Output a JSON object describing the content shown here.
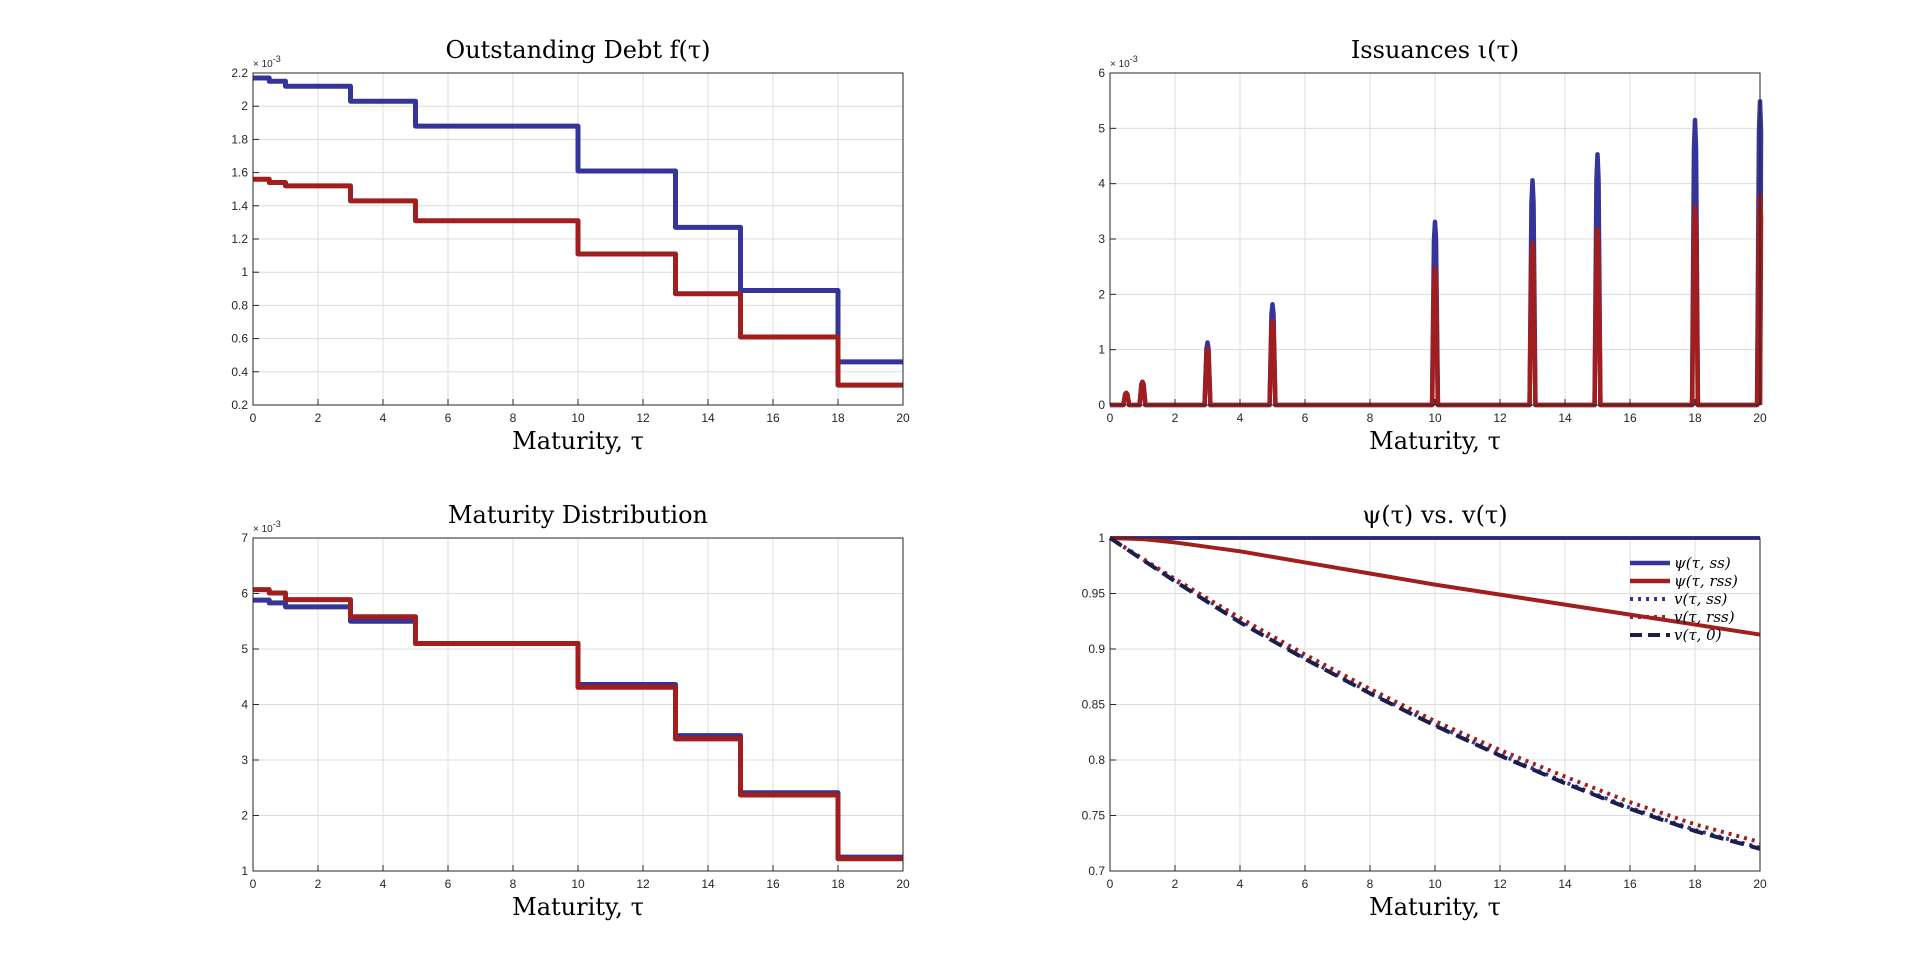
{
  "chart_data": [
    {
      "type": "line",
      "title": "Outstanding Debt f(τ)",
      "xlabel": "Maturity, τ",
      "ylabel": "",
      "xlim": [
        0,
        20
      ],
      "ylim": [
        0.2,
        2.2
      ],
      "x_ticks": [
        "0",
        "2",
        "4",
        "6",
        "8",
        "10",
        "12",
        "14",
        "16",
        "18",
        "20"
      ],
      "y_ticks": [
        "0.2",
        "0.4",
        "0.6",
        "0.8",
        "1",
        "1.2",
        "1.4",
        "1.6",
        "1.8",
        "2",
        "2.2"
      ],
      "y_exponent": "× 10-3",
      "grid": true,
      "colors": [
        "#34349a",
        "#a01e1e"
      ],
      "series": [
        {
          "x": [
            0,
            0.5,
            0.5,
            1.0,
            1.0,
            3.0,
            3.0,
            5.0,
            5.0,
            10.0,
            10.0,
            13.0,
            13.0,
            15.0,
            15.0,
            18.0,
            18.0,
            20.0
          ],
          "y": [
            2.17,
            2.17,
            2.15,
            2.15,
            2.12,
            2.12,
            2.03,
            2.03,
            1.88,
            1.88,
            1.61,
            1.61,
            1.27,
            1.27,
            0.89,
            0.89,
            0.46,
            0.46
          ]
        },
        {
          "x": [
            0,
            0.5,
            0.5,
            1.0,
            1.0,
            3.0,
            3.0,
            5.0,
            5.0,
            10.0,
            10.0,
            13.0,
            13.0,
            15.0,
            15.0,
            18.0,
            18.0,
            20.0
          ],
          "y": [
            1.56,
            1.56,
            1.54,
            1.54,
            1.52,
            1.52,
            1.43,
            1.43,
            1.31,
            1.31,
            1.11,
            1.11,
            0.87,
            0.87,
            0.61,
            0.61,
            0.32,
            0.32
          ]
        }
      ]
    },
    {
      "type": "line",
      "title": "Issuances ι(τ)",
      "xlabel": "Maturity, τ",
      "ylabel": "",
      "xlim": [
        0,
        20
      ],
      "ylim": [
        0,
        6
      ],
      "x_ticks": [
        "0",
        "2",
        "4",
        "6",
        "8",
        "10",
        "12",
        "14",
        "16",
        "18",
        "20"
      ],
      "y_ticks": [
        "0",
        "1",
        "2",
        "3",
        "4",
        "5",
        "6"
      ],
      "y_exponent": "× 10-3",
      "grid": true,
      "colors": [
        "#34349a",
        "#a01e1e"
      ],
      "series": [
        {
          "spikes": [
            [
              0.5,
              0.22
            ],
            [
              1.0,
              0.42
            ],
            [
              3.0,
              1.13
            ],
            [
              5.0,
              1.82
            ],
            [
              10.0,
              3.31
            ],
            [
              13.0,
              4.06
            ],
            [
              15.0,
              4.53
            ],
            [
              18.0,
              5.15
            ],
            [
              20.0,
              5.49
            ]
          ]
        },
        {
          "spikes": [
            [
              0.5,
              0.22
            ],
            [
              1.0,
              0.42
            ],
            [
              3.0,
              1.02
            ],
            [
              5.0,
              1.52
            ],
            [
              10.0,
              2.47
            ],
            [
              13.0,
              2.92
            ],
            [
              15.0,
              3.18
            ],
            [
              18.0,
              3.58
            ],
            [
              20.0,
              3.78
            ]
          ]
        }
      ]
    },
    {
      "type": "line",
      "title": "Maturity Distribution",
      "xlabel": "Maturity, τ",
      "ylabel": "",
      "xlim": [
        0,
        20
      ],
      "ylim": [
        1,
        7
      ],
      "x_ticks": [
        "0",
        "2",
        "4",
        "6",
        "8",
        "10",
        "12",
        "14",
        "16",
        "18",
        "20"
      ],
      "y_ticks": [
        "1",
        "2",
        "3",
        "4",
        "5",
        "6",
        "7"
      ],
      "y_exponent": "× 10-3",
      "grid": true,
      "colors": [
        "#34349a",
        "#a01e1e"
      ],
      "series": [
        {
          "x": [
            0,
            0.5,
            0.5,
            1.0,
            1.0,
            3.0,
            3.0,
            5.0,
            5.0,
            10.0,
            10.0,
            13.0,
            13.0,
            15.0,
            15.0,
            18.0,
            18.0,
            20.0
          ],
          "y": [
            5.88,
            5.88,
            5.83,
            5.83,
            5.76,
            5.76,
            5.5,
            5.5,
            5.1,
            5.1,
            4.36,
            4.36,
            3.44,
            3.44,
            2.41,
            2.41,
            1.25,
            1.25
          ]
        },
        {
          "x": [
            0,
            0.5,
            0.5,
            1.0,
            1.0,
            3.0,
            3.0,
            5.0,
            5.0,
            10.0,
            10.0,
            13.0,
            13.0,
            15.0,
            15.0,
            18.0,
            18.0,
            20.0
          ],
          "y": [
            6.07,
            6.07,
            6.01,
            6.01,
            5.89,
            5.89,
            5.58,
            5.58,
            5.1,
            5.1,
            4.31,
            4.31,
            3.38,
            3.38,
            2.37,
            2.37,
            1.22,
            1.22
          ]
        }
      ]
    },
    {
      "type": "line",
      "title": "ψ(τ) vs. v(τ)",
      "xlabel": "Maturity, τ",
      "ylabel": "",
      "xlim": [
        0,
        20
      ],
      "ylim": [
        0.7,
        1
      ],
      "x_ticks": [
        "0",
        "2",
        "4",
        "6",
        "8",
        "10",
        "12",
        "14",
        "16",
        "18",
        "20"
      ],
      "y_ticks": [
        "0.7",
        "0.75",
        "0.8",
        "0.85",
        "0.9",
        "0.95",
        "1"
      ],
      "grid": true,
      "legend_position": "top-right",
      "series": [
        {
          "name": "ψ(τ, ss)",
          "color": "#34349a",
          "style": "solid",
          "x": [
            0,
            20
          ],
          "y": [
            1.0,
            1.0
          ]
        },
        {
          "name": "ψ(τ, rss)",
          "color": "#a01e1e",
          "style": "solid",
          "x": [
            0,
            1,
            2,
            4,
            6,
            8,
            10,
            12,
            14,
            16,
            18,
            20
          ],
          "y": [
            1.0,
            0.999,
            0.996,
            0.988,
            0.978,
            0.968,
            0.958,
            0.949,
            0.94,
            0.931,
            0.922,
            0.913
          ]
        },
        {
          "name": "v(τ, ss)",
          "color": "#34349a",
          "style": "dotted",
          "x": [
            0,
            2,
            4,
            6,
            8,
            10,
            12,
            14,
            16,
            18,
            20
          ],
          "y": [
            1.0,
            0.962,
            0.926,
            0.892,
            0.861,
            0.832,
            0.805,
            0.78,
            0.757,
            0.737,
            0.721
          ]
        },
        {
          "name": "v(τ, rss)",
          "color": "#a01e1e",
          "style": "dotted",
          "x": [
            0,
            2,
            4,
            6,
            8,
            10,
            12,
            14,
            16,
            18,
            20
          ],
          "y": [
            1.0,
            0.963,
            0.928,
            0.895,
            0.864,
            0.835,
            0.809,
            0.785,
            0.762,
            0.742,
            0.726
          ]
        },
        {
          "name": "v(τ, 0)",
          "color": "#1b1e4a",
          "style": "dashed",
          "x": [
            0,
            2,
            4,
            6,
            8,
            10,
            12,
            14,
            16,
            18,
            20
          ],
          "y": [
            1.0,
            0.961,
            0.924,
            0.891,
            0.86,
            0.831,
            0.804,
            0.779,
            0.756,
            0.736,
            0.72
          ]
        }
      ]
    }
  ]
}
